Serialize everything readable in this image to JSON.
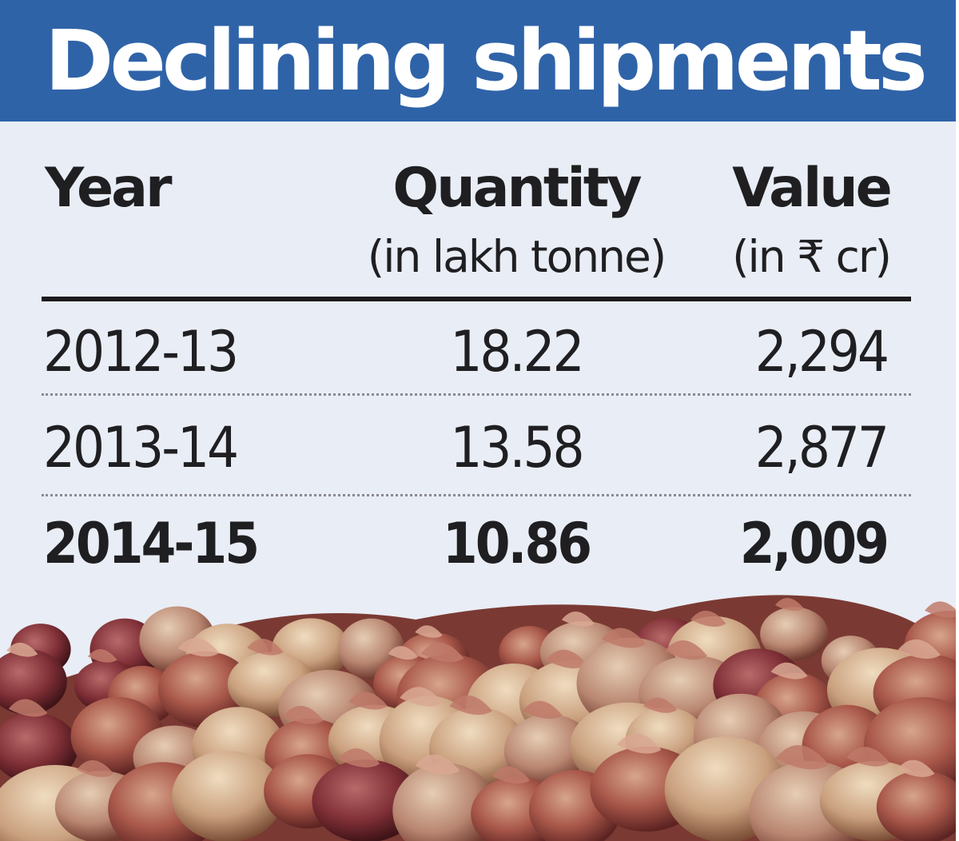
{
  "chart_data": {
    "type": "table",
    "title": "Declining shipments",
    "columns": [
      {
        "label": "Year",
        "unit": ""
      },
      {
        "label": "Quantity",
        "unit": "(in lakh tonne)"
      },
      {
        "label": "Value",
        "unit": "(in ₹ cr)"
      }
    ],
    "rows": [
      {
        "year": "2012-13",
        "quantity": "18.22",
        "value": "2,294",
        "highlight": false
      },
      {
        "year": "2013-14",
        "quantity": "13.58",
        "value": "2,877",
        "highlight": false
      },
      {
        "year": "2014-15",
        "quantity": "10.86",
        "value": "2,009",
        "highlight": true
      }
    ]
  },
  "colors": {
    "title_bar": "#2f63a8",
    "background": "#e9edf5",
    "text": "#1f1f22"
  },
  "image": {
    "subject": "pile of onions",
    "icon": "onion-pile-photo"
  }
}
